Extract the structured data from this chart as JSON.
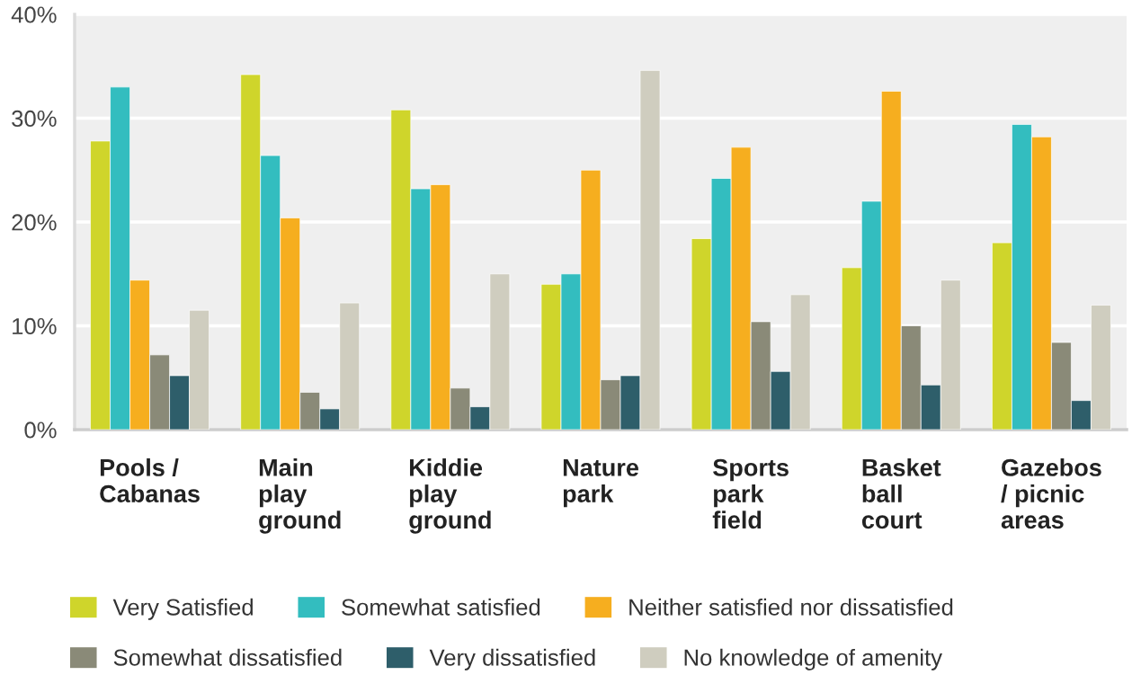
{
  "chart_data": {
    "type": "bar",
    "categories": [
      "Pools /\nCabanas",
      "Main\nplay\nground",
      "Kiddie\nplay\nground",
      "Nature\npark",
      "Sports\npark\nfield",
      "Basket\nball\ncourt",
      "Gazebos\n/ picnic\nareas"
    ],
    "series": [
      {
        "name": "Very Satisfied",
        "color": "#cfd52b",
        "values": [
          27.8,
          34.2,
          30.8,
          14.0,
          18.4,
          15.6,
          18.0
        ]
      },
      {
        "name": "Somewhat satisfied",
        "color": "#33bdbf",
        "values": [
          33.0,
          26.4,
          23.2,
          15.0,
          24.2,
          22.0,
          29.4
        ]
      },
      {
        "name": "Neither satisfied nor dissatisfied",
        "color": "#f6ae1f",
        "values": [
          14.4,
          20.4,
          23.6,
          25.0,
          27.2,
          32.6,
          28.2
        ]
      },
      {
        "name": "Somewhat dissatisfied",
        "color": "#8a8a78",
        "values": [
          7.2,
          3.6,
          4.0,
          4.8,
          10.4,
          10.0,
          8.4
        ]
      },
      {
        "name": "Very dissatisfied",
        "color": "#2e5e6a",
        "values": [
          5.2,
          2.0,
          2.2,
          5.2,
          5.6,
          4.3,
          2.8
        ]
      },
      {
        "name": "No knowledge of amenity",
        "color": "#cfcdbf",
        "values": [
          11.5,
          12.2,
          15.0,
          34.6,
          13.0,
          14.4,
          12.0
        ]
      }
    ],
    "ylim": [
      0,
      40
    ],
    "yticks": [
      {
        "value": 0,
        "label": "0%"
      },
      {
        "value": 10,
        "label": "10%"
      },
      {
        "value": 20,
        "label": "20%"
      },
      {
        "value": 30,
        "label": "30%"
      },
      {
        "value": 40,
        "label": "40%"
      }
    ],
    "grid": "y",
    "legend": "bottom"
  }
}
